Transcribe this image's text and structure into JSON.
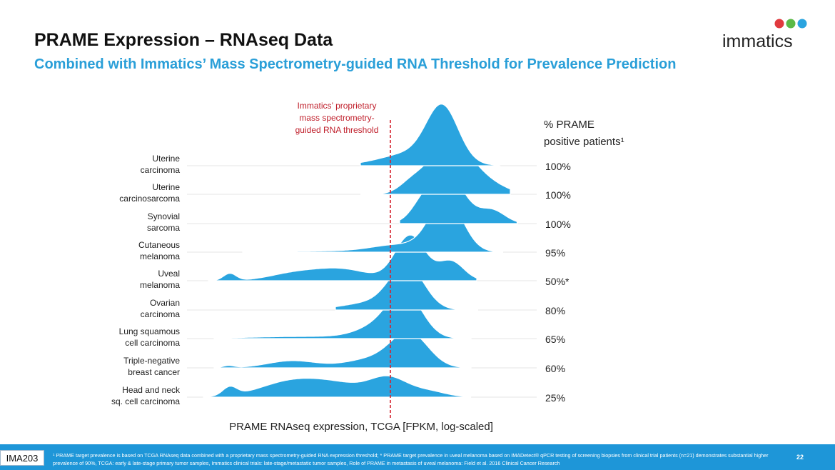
{
  "slide": {
    "title": "PRAME Expression – RNAseq Data",
    "subtitle": "Combined with Immatics’ Mass Spectrometry-guided RNA Threshold for Prevalence Prediction",
    "logo_text": "immatics",
    "footer_tag": "IMA203",
    "footnote": "¹ PRAME target prevalence is based on TCGA RNAseq data combined with a proprietary mass spectrometry-guided RNA expression threshold; * PRAME target prevalence in uveal melanoma based on IMADetect® qPCR testing of screening biopsies from clinical trial patients (n=21) demonstrates substantial higher prevalence of 90%, TCGA: early & late-stage primary tumor samples, Immatics clinical trials: late-stage/metastatic tumor samples, Role of PRAME in metastasis of uveal melanoma: Field et al. 2016 Clinical Cancer Research",
    "page_number": "22"
  },
  "colors": {
    "title": "#111111",
    "subtitle": "#2a9fd8",
    "density_fill": "#2aa4df",
    "threshold": "#d6232f",
    "footer_bar": "#1e96d8"
  },
  "chart_data": {
    "type": "ridgeline",
    "xlabel": "PRAME RNAseq expression, TCGA [FPKM, log-scaled]",
    "threshold_label": [
      "Immatics’ proprietary",
      "mass spectrometry-",
      "guided RNA threshold"
    ],
    "header_label": [
      "% PRAME",
      "positive patients¹"
    ],
    "rows": [
      {
        "label": [
          "Uterine",
          "carcinoma"
        ],
        "value": "100%"
      },
      {
        "label": [
          "Uterine",
          "carcinosarcoma"
        ],
        "value": "100%"
      },
      {
        "label": [
          "Synovial",
          "sarcoma"
        ],
        "value": "100%"
      },
      {
        "label": [
          "Cutaneous",
          "melanoma"
        ],
        "value": "95%"
      },
      {
        "label": [
          "Uveal",
          "melanoma"
        ],
        "value": "50%*"
      },
      {
        "label": [
          "Ovarian",
          "carcinoma"
        ],
        "value": "80%"
      },
      {
        "label": [
          "Lung squamous",
          "cell carcinoma"
        ],
        "value": "65%"
      },
      {
        "label": [
          "Triple-negative",
          "breast cancer"
        ],
        "value": "60%"
      },
      {
        "label": [
          "Head and neck",
          "sq. cell carcinoma"
        ],
        "value": "25%"
      }
    ]
  }
}
